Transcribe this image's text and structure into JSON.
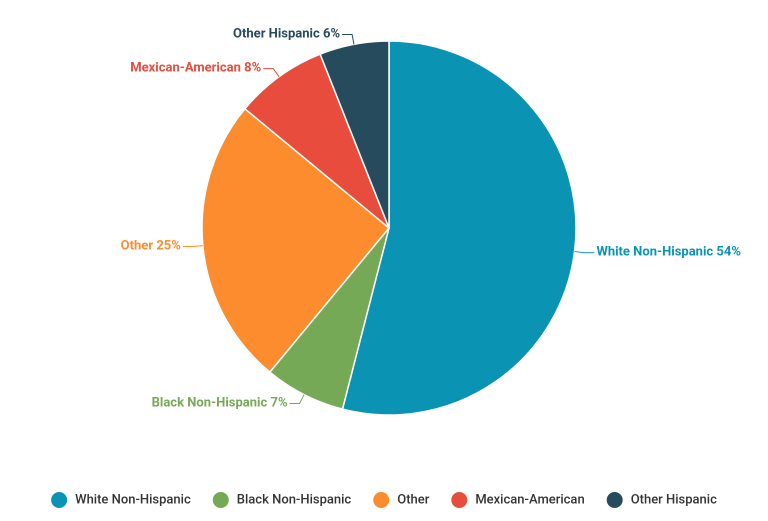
{
  "chart_data": {
    "type": "pie",
    "categories": [
      "White Non-Hispanic",
      "Black Non-Hispanic",
      "Other",
      "Mexican-American",
      "Other Hispanic"
    ],
    "values": [
      54,
      7,
      25,
      8,
      6
    ],
    "value_labels": [
      "54%",
      "7%",
      "25%",
      "8%",
      "6%"
    ],
    "colors": [
      "#0a93b3",
      "#76a956",
      "#fd8c2e",
      "#e74c3c",
      "#264b5d"
    ],
    "legend": "bottom"
  }
}
